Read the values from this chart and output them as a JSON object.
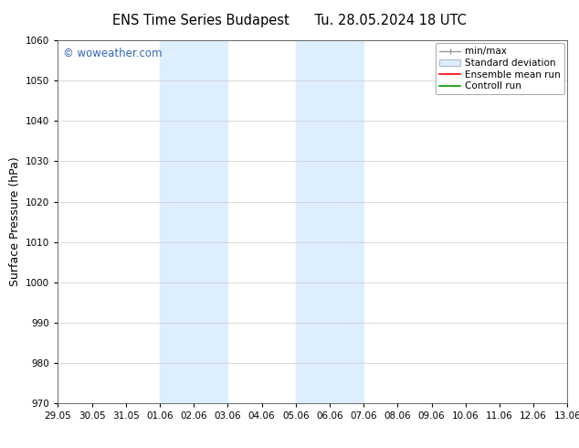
{
  "title_left": "ENS Time Series Budapest",
  "title_right": "Tu. 28.05.2024 18 UTC",
  "ylabel": "Surface Pressure (hPa)",
  "ylim": [
    970,
    1060
  ],
  "yticks": [
    970,
    980,
    990,
    1000,
    1010,
    1020,
    1030,
    1040,
    1050,
    1060
  ],
  "xtick_labels": [
    "29.05",
    "30.05",
    "31.05",
    "01.06",
    "02.06",
    "03.06",
    "04.06",
    "05.06",
    "06.06",
    "07.06",
    "08.06",
    "09.06",
    "10.06",
    "11.06",
    "12.06",
    "13.06"
  ],
  "background_color": "#ffffff",
  "plot_bg_color": "#ffffff",
  "shaded_regions": [
    {
      "xstart": 3,
      "xend": 5,
      "color": "#ddeeff"
    },
    {
      "xstart": 7,
      "xend": 9,
      "color": "#ddeeff"
    }
  ],
  "watermark_text": "© woweather.com",
  "watermark_color": "#3366bb",
  "legend_labels": [
    "min/max",
    "Standard deviation",
    "Ensemble mean run",
    "Controll run"
  ],
  "legend_colors_line": [
    "#999999",
    "#bbccdd",
    "#ff0000",
    "#009900"
  ],
  "grid_color": "#cccccc",
  "tick_label_fontsize": 7.5,
  "axis_label_fontsize": 9,
  "title_fontsize": 10.5,
  "legend_fontsize": 7.5
}
